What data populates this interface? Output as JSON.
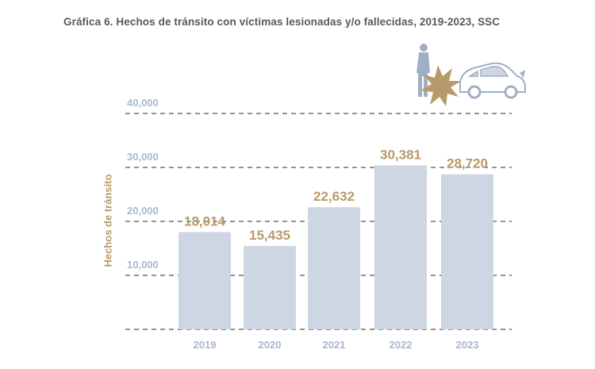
{
  "page_title": "Gráfica 6.  Hechos de tránsito con víctimas lesionadas y/o fallecidas, 2019-2023, SSC",
  "colors": {
    "bar": "#cdd6e2",
    "value_label": "#b89a6a",
    "y_tick": "#a8b8cf",
    "x_tick": "#a8b8cf",
    "grid": "#555555",
    "title": "#5a5a5a",
    "illustration_car": "#9fafc6",
    "illustration_burst": "#b89a6a"
  },
  "illustration": {
    "icon": "car-crash-pedestrian-icon"
  },
  "chart_data": {
    "type": "bar",
    "title": "Gráfica 6.  Hechos de tránsito con víctimas lesionadas y/o fallecidas, 2019-2023, SSC",
    "xlabel": "",
    "ylabel": "Hechos de tránsito",
    "categories": [
      "2019",
      "2020",
      "2021",
      "2022",
      "2023"
    ],
    "values": [
      18014,
      15435,
      22632,
      30381,
      28720
    ],
    "value_labels": [
      "18,014",
      "15,435",
      "22,632",
      "30,381",
      "28,720"
    ],
    "y_ticks": [
      0,
      10000,
      20000,
      30000,
      40000
    ],
    "y_tick_labels": [
      "",
      "10,000",
      "20,000",
      "30,000",
      "40,000"
    ],
    "ylim": [
      0,
      40000
    ],
    "grid": true,
    "grid_style": "dashed",
    "legend": "none"
  }
}
